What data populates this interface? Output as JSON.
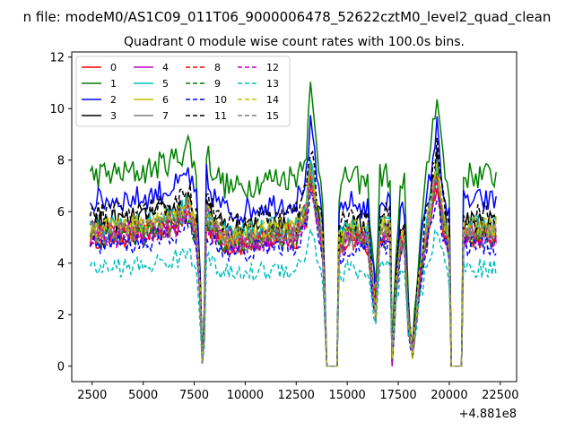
{
  "chart_data": {
    "type": "line",
    "suptitle": "n file: modeM0/AS1C09_011T06_9000006478_52622cztM0_level2_quad_clean",
    "title": "Quadrant 0 module wise count rates with 100.0s bins.",
    "xlabel": "",
    "ylabel": "",
    "x_offset_label": "+4.881e8",
    "xlim": [
      1500,
      23300
    ],
    "ylim": [
      -0.6,
      12.2
    ],
    "xticks": [
      2500,
      5000,
      7500,
      10000,
      12500,
      15000,
      17500,
      20000,
      22500
    ],
    "yticks": [
      0,
      2,
      4,
      6,
      8,
      10,
      12
    ],
    "x_range": [
      2400,
      22300
    ],
    "bin_seconds": 100,
    "legend_loc": "upper left",
    "legend_ncol": 4,
    "series": [
      {
        "name": "0",
        "color": "#ff0000",
        "style": "solid",
        "base": 5.0
      },
      {
        "name": "1",
        "color": "#008000",
        "style": "solid",
        "base": 7.4
      },
      {
        "name": "2",
        "color": "#0000ff",
        "style": "solid",
        "base": 6.4
      },
      {
        "name": "3",
        "color": "#000000",
        "style": "solid",
        "base": 5.6
      },
      {
        "name": "4",
        "color": "#bf00bf",
        "style": "solid",
        "base": 5.2
      },
      {
        "name": "5",
        "color": "#00bfbf",
        "style": "solid",
        "base": 5.4
      },
      {
        "name": "6",
        "color": "#bfbf00",
        "style": "solid",
        "base": 5.3
      },
      {
        "name": "7",
        "color": "#808080",
        "style": "solid",
        "base": 5.1
      },
      {
        "name": "8",
        "color": "#ff0000",
        "style": "dashed",
        "base": 5.1
      },
      {
        "name": "9",
        "color": "#008000",
        "style": "dashed",
        "base": 5.0
      },
      {
        "name": "10",
        "color": "#0000ff",
        "style": "dashed",
        "base": 4.7
      },
      {
        "name": "11",
        "color": "#000000",
        "style": "dashed",
        "base": 5.9
      },
      {
        "name": "12",
        "color": "#bf00bf",
        "style": "dashed",
        "base": 5.0
      },
      {
        "name": "13",
        "color": "#00bfbf",
        "style": "dashed",
        "base": 3.8
      },
      {
        "name": "14",
        "color": "#bfbf00",
        "style": "dashed",
        "base": 5.4
      },
      {
        "name": "15",
        "color": "#808080",
        "style": "dashed",
        "base": 5.2
      }
    ],
    "common_profile": [
      [
        2400,
        1.0
      ],
      [
        5000,
        1.02
      ],
      [
        6800,
        1.1
      ],
      [
        7200,
        1.18
      ],
      [
        7600,
        1.0
      ],
      [
        7800,
        0.5
      ],
      [
        7900,
        0.02
      ],
      [
        8000,
        0.3
      ],
      [
        8100,
        1.15
      ],
      [
        8300,
        1.05
      ],
      [
        9000,
        0.95
      ],
      [
        9500,
        0.93
      ],
      [
        11000,
        0.98
      ],
      [
        12500,
        1.0
      ],
      [
        13000,
        1.15
      ],
      [
        13200,
        1.45
      ],
      [
        13500,
        1.15
      ],
      [
        13800,
        0.9
      ],
      [
        14000,
        0.0
      ],
      [
        14500,
        0.0
      ],
      [
        14600,
        0.9
      ],
      [
        15000,
        1.0
      ],
      [
        16000,
        0.95
      ],
      [
        16400,
        0.4
      ],
      [
        16600,
        1.0
      ],
      [
        17100,
        1.0
      ],
      [
        17200,
        0.05
      ],
      [
        17400,
        0.6
      ],
      [
        17600,
        0.9
      ],
      [
        17800,
        0.95
      ],
      [
        18000,
        0.3
      ],
      [
        18200,
        0.1
      ],
      [
        18500,
        0.6
      ],
      [
        19000,
        1.1
      ],
      [
        19400,
        1.45
      ],
      [
        19600,
        1.2
      ],
      [
        19800,
        1.0
      ],
      [
        20000,
        0.9
      ],
      [
        20100,
        0.0
      ],
      [
        20600,
        0.0
      ],
      [
        20700,
        1.0
      ],
      [
        22300,
        1.0
      ]
    ]
  }
}
